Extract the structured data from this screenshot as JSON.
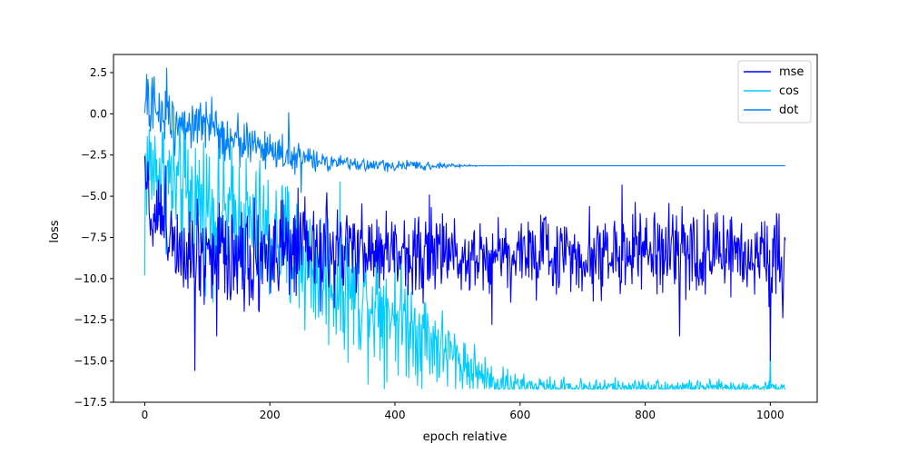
{
  "chart_data": {
    "type": "line",
    "title": "",
    "xlabel": "epoch relative",
    "ylabel": "loss",
    "xlim": [
      -50,
      1075
    ],
    "ylim": [
      -17.5,
      3.6
    ],
    "xticks": [
      0,
      200,
      400,
      600,
      800,
      1000
    ],
    "xtick_labels": [
      "0",
      "200",
      "400",
      "600",
      "800",
      "1000"
    ],
    "yticks": [
      2.5,
      0.0,
      -2.5,
      -5.0,
      -7.5,
      -10.0,
      -12.5,
      -15.0,
      -17.5
    ],
    "ytick_labels": [
      "2.5",
      "0.0",
      "−2.5",
      "−5.0",
      "−7.5",
      "−10.0",
      "−12.5",
      "−15.0",
      "−17.5"
    ],
    "grid": false,
    "legend": "top-right",
    "series": [
      {
        "name": "mse",
        "color": "#0000ff",
        "points_xy": [
          [
            0,
            -2.5
          ],
          [
            10,
            -6.5
          ],
          [
            20,
            -5.8
          ],
          [
            40,
            -7.0
          ],
          [
            60,
            -7.8
          ],
          [
            80,
            -8.0
          ],
          [
            100,
            -8.2
          ],
          [
            150,
            -8.4
          ],
          [
            200,
            -8.5
          ],
          [
            300,
            -8.4
          ],
          [
            400,
            -8.4
          ],
          [
            500,
            -8.5
          ],
          [
            600,
            -8.5
          ],
          [
            700,
            -8.5
          ],
          [
            800,
            -8.5
          ],
          [
            900,
            -8.5
          ],
          [
            1000,
            -8.5
          ],
          [
            1024,
            -8.5
          ]
        ],
        "spread": [
          [
            0,
            1.5
          ],
          [
            50,
            3.0
          ],
          [
            150,
            3.4
          ],
          [
            300,
            2.6
          ],
          [
            450,
            2.2
          ],
          [
            600,
            2.2
          ],
          [
            800,
            2.3
          ],
          [
            1024,
            2.3
          ]
        ],
        "notable_extremes": [
          [
            80,
            -15.6
          ],
          [
            115,
            -13.5
          ],
          [
            455,
            -4.9
          ],
          [
            555,
            -12.8
          ],
          [
            763,
            -4.3
          ],
          [
            855,
            -13.5
          ],
          [
            1000,
            -15.0
          ],
          [
            1020,
            -12.4
          ]
        ]
      },
      {
        "name": "cos",
        "color": "#00ccff",
        "points_xy": [
          [
            0,
            -3.0
          ],
          [
            20,
            -3.5
          ],
          [
            50,
            -4.5
          ],
          [
            100,
            -5.5
          ],
          [
            150,
            -6.5
          ],
          [
            200,
            -7.5
          ],
          [
            250,
            -8.8
          ],
          [
            300,
            -10.0
          ],
          [
            350,
            -11.0
          ],
          [
            400,
            -12.0
          ],
          [
            450,
            -13.5
          ],
          [
            500,
            -15.0
          ],
          [
            550,
            -16.2
          ],
          [
            600,
            -16.5
          ],
          [
            650,
            -16.6
          ],
          [
            1024,
            -16.6
          ]
        ],
        "spread": [
          [
            0,
            3.5
          ],
          [
            100,
            4.0
          ],
          [
            200,
            4.0
          ],
          [
            300,
            4.0
          ],
          [
            400,
            3.5
          ],
          [
            500,
            2.0
          ],
          [
            600,
            0.6
          ],
          [
            1024,
            0.3
          ]
        ],
        "floor": -16.7,
        "notable_extremes": [
          [
            0,
            -9.8
          ],
          [
            230,
            -4.7
          ],
          [
            1000,
            -14.4
          ]
        ]
      },
      {
        "name": "dot",
        "color": "#0080ff",
        "points_xy": [
          [
            0,
            0.5
          ],
          [
            20,
            0.2
          ],
          [
            50,
            -0.3
          ],
          [
            100,
            -0.9
          ],
          [
            150,
            -1.6
          ],
          [
            200,
            -2.2
          ],
          [
            250,
            -2.7
          ],
          [
            300,
            -3.0
          ],
          [
            350,
            -3.1
          ],
          [
            400,
            -3.15
          ],
          [
            450,
            -3.15
          ],
          [
            500,
            -3.15
          ],
          [
            600,
            -3.15
          ],
          [
            1024,
            -3.15
          ]
        ],
        "spread": [
          [
            0,
            1.8
          ],
          [
            100,
            1.6
          ],
          [
            200,
            1.1
          ],
          [
            300,
            0.4
          ],
          [
            400,
            0.3
          ],
          [
            480,
            0.15
          ],
          [
            540,
            0.02
          ],
          [
            600,
            0.0
          ],
          [
            1024,
            0.0
          ]
        ],
        "notable_extremes": [
          [
            35,
            2.8
          ],
          [
            230,
            0.1
          ],
          [
            250,
            -4.8
          ]
        ]
      }
    ]
  }
}
